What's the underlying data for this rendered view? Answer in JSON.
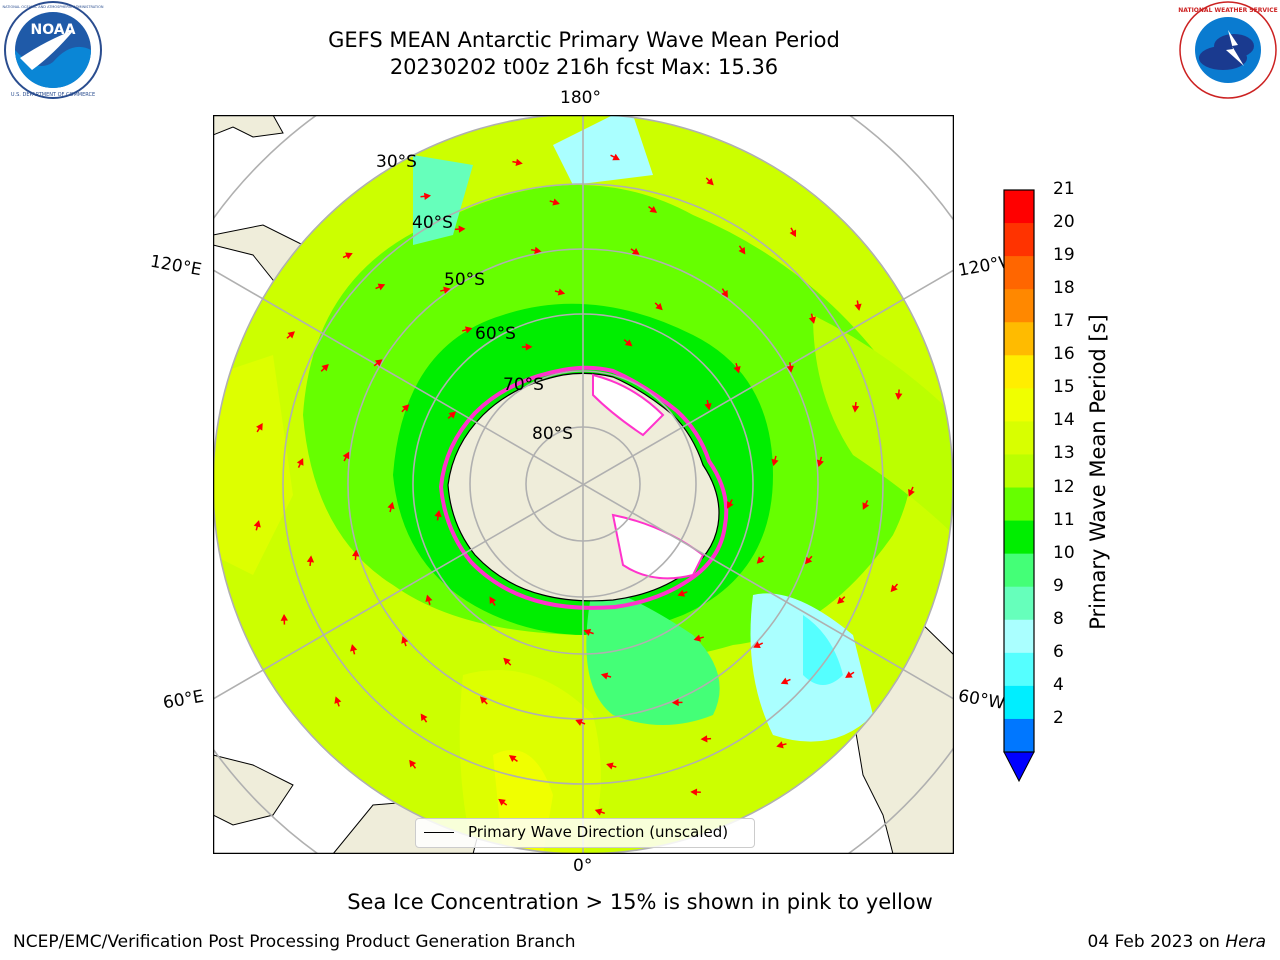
{
  "title": {
    "line1": "GEFS MEAN Antarctic Primary Wave Mean Period",
    "line2": "20230202 t00z 216h fcst   Max: 15.36"
  },
  "logos": {
    "noara": "NOAA",
    "noaa_ring_top": "NATIONAL OCEANIC AND ATMOSPHERIC ADMINISTRATION",
    "noaa_ring_bottom": "U.S. DEPARTMENT OF COMMERCE",
    "nws_ring": "NATIONAL WEATHER SERVICE"
  },
  "map": {
    "lon_labels": {
      "top": "180°",
      "bottom": "0°",
      "left_upper": "120°E",
      "left_lower": "60°E",
      "right_upper": "120°W",
      "right_lower": "60°W"
    },
    "lat_labels": [
      "30°S",
      "40°S",
      "50°S",
      "60°S",
      "70°S",
      "80°S"
    ],
    "legend": "Primary Wave Direction (unscaled)",
    "colors": {
      "land": "#efedda",
      "ice_edge": "#ff33cc"
    }
  },
  "colorbar": {
    "label": "Primary Wave Mean Period [s]",
    "ticks": [
      "21",
      "20",
      "19",
      "18",
      "17",
      "16",
      "15",
      "14",
      "13",
      "12",
      "11",
      "10",
      "9",
      "8",
      "6",
      "4",
      "2"
    ],
    "colors": [
      "#ff0000",
      "#ff3300",
      "#ff6600",
      "#ff8800",
      "#ffbb00",
      "#ffee00",
      "#f0ff00",
      "#d8ff00",
      "#bbff00",
      "#66ff00",
      "#00ee00",
      "#44ff77",
      "#66ffbb",
      "#aaffff",
      "#55ffff",
      "#00eeff",
      "#0077ff"
    ],
    "extend_color": "#0000ff"
  },
  "note": "Sea Ice Concentration > 15% is shown in pink to yellow",
  "footer": {
    "left": "NCEP/EMC/Verification Post Processing Product Generation Branch",
    "right_date": "04 Feb 2023 on ",
    "right_host": "Hera"
  }
}
